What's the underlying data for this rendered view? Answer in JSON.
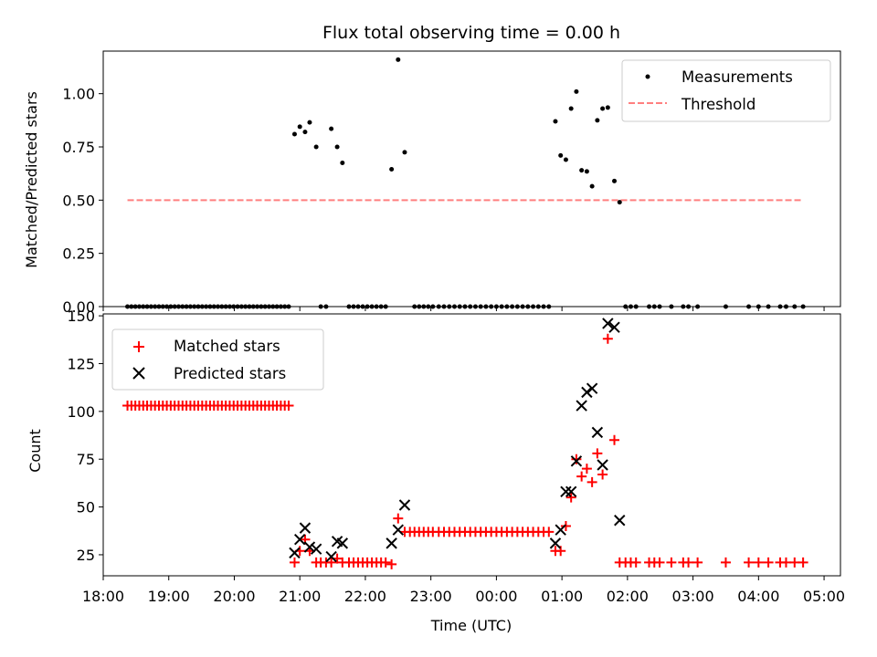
{
  "chart_data": [
    {
      "type": "scatter",
      "title": "Flux total observing time = 0.00 h",
      "xlabel": "",
      "ylabel": "Matched/Predicted stars",
      "xlim_hours": [
        18.0,
        29.25
      ],
      "ylim": [
        0.0,
        1.2
      ],
      "yticks": [
        "0.00",
        "0.25",
        "0.50",
        "0.75",
        "1.00"
      ],
      "legend_position": "upper right",
      "series": [
        {
          "name": "Measurements",
          "color": "#000000",
          "marker": "dot",
          "points": [
            [
              18.37,
              0
            ],
            [
              18.43,
              0
            ],
            [
              18.49,
              0
            ],
            [
              18.55,
              0
            ],
            [
              18.61,
              0
            ],
            [
              18.67,
              0
            ],
            [
              18.73,
              0
            ],
            [
              18.79,
              0
            ],
            [
              18.85,
              0
            ],
            [
              18.91,
              0
            ],
            [
              18.97,
              0
            ],
            [
              19.03,
              0
            ],
            [
              19.09,
              0
            ],
            [
              19.15,
              0
            ],
            [
              19.21,
              0
            ],
            [
              19.27,
              0
            ],
            [
              19.33,
              0
            ],
            [
              19.39,
              0
            ],
            [
              19.45,
              0
            ],
            [
              19.51,
              0
            ],
            [
              19.57,
              0
            ],
            [
              19.63,
              0
            ],
            [
              19.69,
              0
            ],
            [
              19.75,
              0
            ],
            [
              19.81,
              0
            ],
            [
              19.87,
              0
            ],
            [
              19.93,
              0
            ],
            [
              19.99,
              0
            ],
            [
              20.05,
              0
            ],
            [
              20.11,
              0
            ],
            [
              20.17,
              0
            ],
            [
              20.23,
              0
            ],
            [
              20.29,
              0
            ],
            [
              20.35,
              0
            ],
            [
              20.41,
              0
            ],
            [
              20.47,
              0
            ],
            [
              20.53,
              0
            ],
            [
              20.59,
              0
            ],
            [
              20.65,
              0
            ],
            [
              20.71,
              0
            ],
            [
              20.77,
              0
            ],
            [
              20.83,
              0
            ],
            [
              20.92,
              0.81
            ],
            [
              21.0,
              0.845
            ],
            [
              21.08,
              0.82
            ],
            [
              21.15,
              0.865
            ],
            [
              21.25,
              0.75
            ],
            [
              21.48,
              0.835
            ],
            [
              21.57,
              0.75
            ],
            [
              21.65,
              0.675
            ],
            [
              22.4,
              0.645
            ],
            [
              22.5,
              1.16
            ],
            [
              22.6,
              0.725
            ],
            [
              21.32,
              0
            ],
            [
              21.4,
              0
            ],
            [
              21.75,
              0
            ],
            [
              21.82,
              0
            ],
            [
              21.89,
              0
            ],
            [
              21.96,
              0
            ],
            [
              22.03,
              0
            ],
            [
              22.1,
              0
            ],
            [
              22.17,
              0
            ],
            [
              22.24,
              0
            ],
            [
              22.31,
              0
            ],
            [
              22.75,
              0
            ],
            [
              22.82,
              0
            ],
            [
              22.89,
              0
            ],
            [
              22.96,
              0
            ],
            [
              23.03,
              0
            ],
            [
              23.12,
              0
            ],
            [
              23.2,
              0
            ],
            [
              23.28,
              0
            ],
            [
              23.36,
              0
            ],
            [
              23.44,
              0
            ],
            [
              23.52,
              0
            ],
            [
              23.6,
              0
            ],
            [
              23.68,
              0
            ],
            [
              23.76,
              0
            ],
            [
              23.84,
              0
            ],
            [
              23.92,
              0
            ],
            [
              24.0,
              0
            ],
            [
              24.08,
              0
            ],
            [
              24.16,
              0
            ],
            [
              24.24,
              0
            ],
            [
              24.32,
              0
            ],
            [
              24.4,
              0
            ],
            [
              24.48,
              0
            ],
            [
              24.56,
              0
            ],
            [
              24.64,
              0
            ],
            [
              24.72,
              0
            ],
            [
              24.8,
              0
            ],
            [
              24.9,
              0.87
            ],
            [
              24.98,
              0.71
            ],
            [
              25.06,
              0.69
            ],
            [
              25.14,
              0.93
            ],
            [
              25.22,
              1.01
            ],
            [
              25.3,
              0.64
            ],
            [
              25.38,
              0.635
            ],
            [
              25.46,
              0.565
            ],
            [
              25.54,
              0.875
            ],
            [
              25.62,
              0.93
            ],
            [
              25.7,
              0.935
            ],
            [
              25.8,
              0.59
            ],
            [
              25.88,
              0.49
            ],
            [
              25.97,
              0
            ],
            [
              26.05,
              0
            ],
            [
              26.13,
              0
            ],
            [
              26.33,
              0
            ],
            [
              26.41,
              0
            ],
            [
              26.49,
              0
            ],
            [
              26.67,
              0
            ],
            [
              26.85,
              0
            ],
            [
              26.93,
              0
            ],
            [
              27.07,
              0
            ],
            [
              27.5,
              0
            ],
            [
              27.85,
              0
            ],
            [
              28.0,
              0
            ],
            [
              28.15,
              0
            ],
            [
              28.33,
              0
            ],
            [
              28.42,
              0
            ],
            [
              28.55,
              0
            ],
            [
              28.68,
              0
            ]
          ]
        },
        {
          "name": "Threshold",
          "color": "#ff7f7f",
          "style": "dashed",
          "x": [
            18.37,
            28.68
          ],
          "y": [
            0.5,
            0.5
          ]
        }
      ]
    },
    {
      "type": "scatter",
      "title": "",
      "xlabel": "Time (UTC)",
      "ylabel": "Count",
      "xlim_hours": [
        18.0,
        29.25
      ],
      "ylim": [
        14,
        151
      ],
      "yticks": [
        "25",
        "50",
        "75",
        "100",
        "125",
        "150"
      ],
      "xticks_hours": [
        18,
        19,
        20,
        21,
        22,
        23,
        24,
        25,
        26,
        27,
        28,
        29
      ],
      "xtick_labels": [
        "18:00",
        "19:00",
        "20:00",
        "21:00",
        "22:00",
        "23:00",
        "00:00",
        "01:00",
        "02:00",
        "03:00",
        "04:00",
        "05:00"
      ],
      "legend_position": "upper left",
      "series": [
        {
          "name": "Matched stars",
          "color": "#ff0000",
          "marker": "plus",
          "points": [
            [
              18.37,
              103
            ],
            [
              18.43,
              103
            ],
            [
              18.49,
              103
            ],
            [
              18.55,
              103
            ],
            [
              18.61,
              103
            ],
            [
              18.67,
              103
            ],
            [
              18.73,
              103
            ],
            [
              18.79,
              103
            ],
            [
              18.85,
              103
            ],
            [
              18.91,
              103
            ],
            [
              18.97,
              103
            ],
            [
              19.03,
              103
            ],
            [
              19.09,
              103
            ],
            [
              19.15,
              103
            ],
            [
              19.21,
              103
            ],
            [
              19.27,
              103
            ],
            [
              19.33,
              103
            ],
            [
              19.39,
              103
            ],
            [
              19.45,
              103
            ],
            [
              19.51,
              103
            ],
            [
              19.57,
              103
            ],
            [
              19.63,
              103
            ],
            [
              19.69,
              103
            ],
            [
              19.75,
              103
            ],
            [
              19.81,
              103
            ],
            [
              19.87,
              103
            ],
            [
              19.93,
              103
            ],
            [
              19.99,
              103
            ],
            [
              20.05,
              103
            ],
            [
              20.11,
              103
            ],
            [
              20.17,
              103
            ],
            [
              20.23,
              103
            ],
            [
              20.29,
              103
            ],
            [
              20.35,
              103
            ],
            [
              20.41,
              103
            ],
            [
              20.47,
              103
            ],
            [
              20.53,
              103
            ],
            [
              20.59,
              103
            ],
            [
              20.65,
              103
            ],
            [
              20.71,
              103
            ],
            [
              20.77,
              103
            ],
            [
              20.83,
              103
            ],
            [
              20.92,
              21
            ],
            [
              21.0,
              27
            ],
            [
              21.08,
              33
            ],
            [
              21.15,
              27
            ],
            [
              21.25,
              21
            ],
            [
              21.32,
              21
            ],
            [
              21.4,
              21
            ],
            [
              21.48,
              21
            ],
            [
              21.57,
              23
            ],
            [
              21.65,
              21
            ],
            [
              21.75,
              21
            ],
            [
              21.82,
              21
            ],
            [
              21.89,
              21
            ],
            [
              21.96,
              21
            ],
            [
              22.03,
              21
            ],
            [
              22.1,
              21
            ],
            [
              22.17,
              21
            ],
            [
              22.24,
              21
            ],
            [
              22.31,
              21
            ],
            [
              22.4,
              20
            ],
            [
              22.5,
              44
            ],
            [
              22.6,
              37
            ],
            [
              22.68,
              37
            ],
            [
              22.75,
              37
            ],
            [
              22.82,
              37
            ],
            [
              22.89,
              37
            ],
            [
              22.96,
              37
            ],
            [
              23.03,
              37
            ],
            [
              23.12,
              37
            ],
            [
              23.2,
              37
            ],
            [
              23.28,
              37
            ],
            [
              23.36,
              37
            ],
            [
              23.44,
              37
            ],
            [
              23.52,
              37
            ],
            [
              23.6,
              37
            ],
            [
              23.68,
              37
            ],
            [
              23.76,
              37
            ],
            [
              23.84,
              37
            ],
            [
              23.92,
              37
            ],
            [
              24.0,
              37
            ],
            [
              24.08,
              37
            ],
            [
              24.16,
              37
            ],
            [
              24.24,
              37
            ],
            [
              24.32,
              37
            ],
            [
              24.4,
              37
            ],
            [
              24.48,
              37
            ],
            [
              24.56,
              37
            ],
            [
              24.64,
              37
            ],
            [
              24.72,
              37
            ],
            [
              24.8,
              37
            ],
            [
              24.9,
              27
            ],
            [
              24.98,
              27
            ],
            [
              25.06,
              40
            ],
            [
              25.14,
              55
            ],
            [
              25.22,
              75
            ],
            [
              25.3,
              66
            ],
            [
              25.38,
              70
            ],
            [
              25.46,
              63
            ],
            [
              25.54,
              78
            ],
            [
              25.62,
              67
            ],
            [
              25.7,
              138
            ],
            [
              25.8,
              85
            ],
            [
              25.88,
              21
            ],
            [
              25.97,
              21
            ],
            [
              26.05,
              21
            ],
            [
              26.13,
              21
            ],
            [
              26.33,
              21
            ],
            [
              26.41,
              21
            ],
            [
              26.49,
              21
            ],
            [
              26.67,
              21
            ],
            [
              26.85,
              21
            ],
            [
              26.93,
              21
            ],
            [
              27.07,
              21
            ],
            [
              27.5,
              21
            ],
            [
              27.85,
              21
            ],
            [
              28.0,
              21
            ],
            [
              28.15,
              21
            ],
            [
              28.33,
              21
            ],
            [
              28.42,
              21
            ],
            [
              28.55,
              21
            ],
            [
              28.68,
              21
            ]
          ]
        },
        {
          "name": "Predicted stars",
          "color": "#000000",
          "marker": "x",
          "points": [
            [
              20.92,
              26
            ],
            [
              21.0,
              33
            ],
            [
              21.08,
              39
            ],
            [
              21.15,
              29
            ],
            [
              21.25,
              28
            ],
            [
              21.48,
              24
            ],
            [
              21.57,
              32
            ],
            [
              21.65,
              31
            ],
            [
              22.4,
              31
            ],
            [
              22.5,
              38
            ],
            [
              22.6,
              51
            ],
            [
              24.9,
              31
            ],
            [
              24.98,
              38
            ],
            [
              25.06,
              58
            ],
            [
              25.14,
              58
            ],
            [
              25.22,
              74
            ],
            [
              25.3,
              103
            ],
            [
              25.38,
              110
            ],
            [
              25.46,
              112
            ],
            [
              25.54,
              89
            ],
            [
              25.62,
              72
            ],
            [
              25.7,
              146
            ],
            [
              25.8,
              144
            ],
            [
              25.88,
              43
            ]
          ]
        }
      ]
    }
  ]
}
